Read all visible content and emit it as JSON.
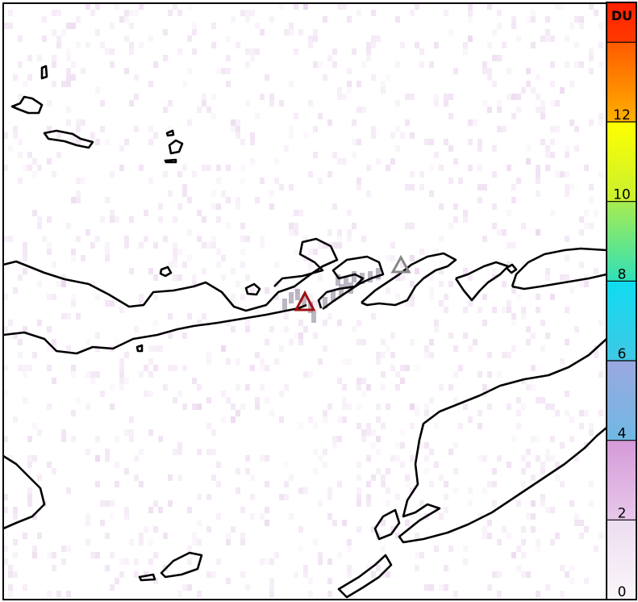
{
  "colorbar": {
    "unit": "DU",
    "range": [
      0,
      15
    ],
    "ticks": [
      {
        "value": 0,
        "label": "0"
      },
      {
        "value": 2,
        "label": "2"
      },
      {
        "value": 4,
        "label": "4"
      },
      {
        "value": 6,
        "label": "6"
      },
      {
        "value": 8,
        "label": "8"
      },
      {
        "value": 10,
        "label": "10"
      },
      {
        "value": 12,
        "label": "12"
      },
      {
        "value": 14,
        "label": ""
      }
    ],
    "bands": [
      {
        "from": 0,
        "to": 2,
        "top": "#ecdcef",
        "bottom": "#fbf6fb"
      },
      {
        "from": 2,
        "to": 4,
        "top": "#d49ad8",
        "bottom": "#e8c8ea"
      },
      {
        "from": 4,
        "to": 6,
        "top": "#9aa8e0",
        "bottom": "#70b8e4"
      },
      {
        "from": 6,
        "to": 8,
        "top": "#10dcf0",
        "bottom": "#40c8e4"
      },
      {
        "from": 8,
        "to": 10,
        "top": "#a8ec50",
        "bottom": "#30e0b8"
      },
      {
        "from": 10,
        "to": 12,
        "top": "#ffff00",
        "bottom": "#c8f030"
      },
      {
        "from": 12,
        "to": 14,
        "top": "#ff5a00",
        "bottom": "#ffb000"
      },
      {
        "from": 14,
        "to": 15,
        "top": "#ff2000",
        "bottom": "#ff3a00"
      }
    ]
  },
  "markers": [
    {
      "name": "volcano-primary",
      "color": "#a01010"
    },
    {
      "name": "volcano-secondary",
      "color": "#888888"
    }
  ],
  "background_noise_color": "#e8d0ec",
  "plume_color": "#a098a8"
}
